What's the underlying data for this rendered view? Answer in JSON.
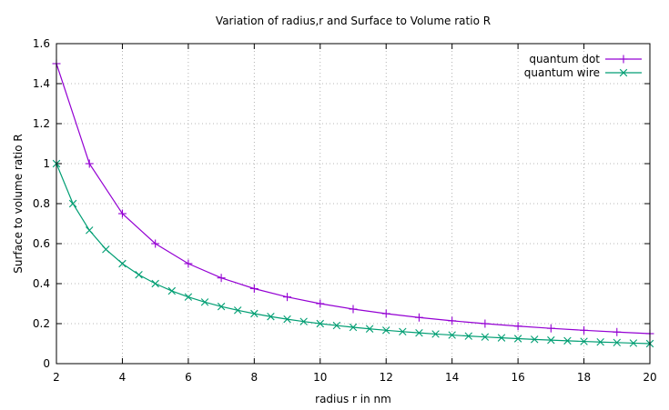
{
  "chart_data": {
    "type": "line",
    "title": "Variation of radius,r and Surface to Volume ratio R",
    "xlabel": "radius r in nm",
    "ylabel": "Surface to volume ratio R",
    "xlim": [
      2,
      20
    ],
    "ylim": [
      0,
      1.6
    ],
    "xticks": [
      "2",
      "4",
      "6",
      "8",
      "10",
      "12",
      "14",
      "16",
      "18",
      "20"
    ],
    "yticks": [
      "0",
      "0.2",
      "0.4",
      "0.6",
      "0.8",
      "1",
      "1.2",
      "1.4",
      "1.6"
    ],
    "grid": true,
    "legend_position": "top-right",
    "series": [
      {
        "name": "quantum dot",
        "color": "#9400d3",
        "marker": "plus",
        "x": [
          2,
          3,
          4,
          5,
          6,
          7,
          8,
          9,
          10,
          11,
          12,
          13,
          14,
          15,
          16,
          17,
          18,
          19,
          20
        ],
        "y": [
          1.5,
          1.0,
          0.75,
          0.6,
          0.5,
          0.4286,
          0.375,
          0.3333,
          0.3,
          0.2727,
          0.25,
          0.2308,
          0.2143,
          0.2,
          0.1875,
          0.1765,
          0.1667,
          0.1579,
          0.15
        ]
      },
      {
        "name": "quantum wire",
        "color": "#009e73",
        "marker": "cross",
        "x": [
          2,
          2.5,
          3,
          3.5,
          4,
          4.5,
          5,
          5.5,
          6,
          6.5,
          7,
          7.5,
          8,
          8.5,
          9,
          9.5,
          10,
          10.5,
          11,
          11.5,
          12,
          12.5,
          13,
          13.5,
          14,
          14.5,
          15,
          15.5,
          16,
          16.5,
          17,
          17.5,
          18,
          18.5,
          19,
          19.5,
          20
        ],
        "y": [
          1.0,
          0.8,
          0.6667,
          0.5714,
          0.5,
          0.4444,
          0.4,
          0.3636,
          0.3333,
          0.3077,
          0.2857,
          0.2667,
          0.25,
          0.2353,
          0.2222,
          0.2105,
          0.2,
          0.1905,
          0.1818,
          0.1739,
          0.1667,
          0.16,
          0.1538,
          0.1481,
          0.1429,
          0.1379,
          0.1333,
          0.129,
          0.125,
          0.1212,
          0.1176,
          0.1143,
          0.1111,
          0.1081,
          0.1053,
          0.1026,
          0.1
        ]
      }
    ]
  }
}
